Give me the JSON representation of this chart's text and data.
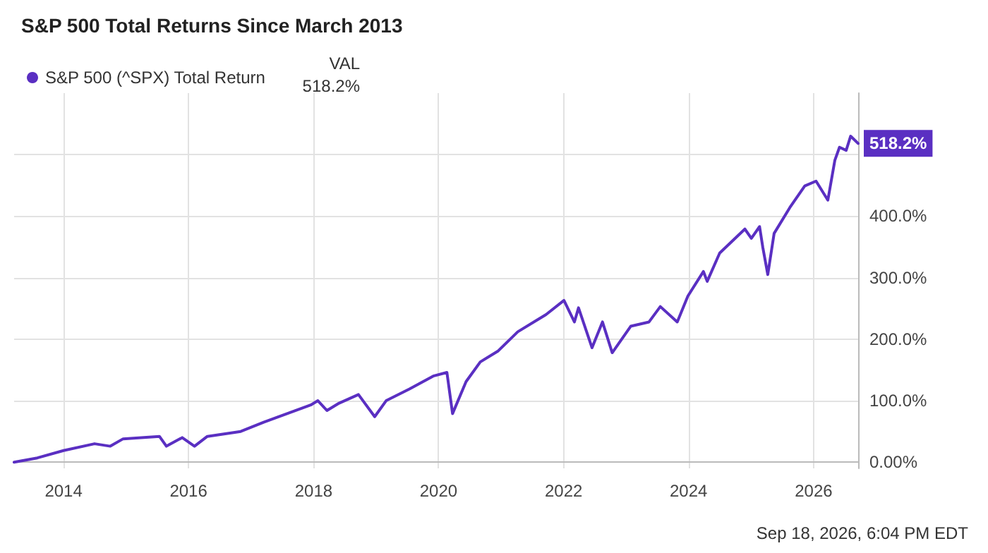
{
  "chart_data": {
    "type": "line",
    "title": "S&P 500 Total Returns Since March 2013",
    "series": [
      {
        "name": "S&P 500 (^SPX) Total Return",
        "color": "#5a2fc2",
        "x": [
          "2013-03-18",
          "2013-08-01",
          "2014-01-01",
          "2014-07-01",
          "2014-10-01",
          "2014-12-15",
          "2015-07-15",
          "2015-08-25",
          "2015-11-25",
          "2016-02-05",
          "2016-04-20",
          "2016-11-01",
          "2017-03-15",
          "2017-12-15",
          "2018-01-26",
          "2018-03-20",
          "2018-05-30",
          "2018-09-20",
          "2018-12-24",
          "2019-03-01",
          "2019-07-15",
          "2019-12-01",
          "2020-02-19",
          "2020-03-23",
          "2020-06-10",
          "2020-09-01",
          "2020-12-15",
          "2021-04-08",
          "2021-09-20",
          "2022-01-03",
          "2022-03-05",
          "2022-03-29",
          "2022-06-16",
          "2022-08-16",
          "2022-10-12",
          "2023-01-28",
          "2023-05-15",
          "2023-07-20",
          "2023-10-27",
          "2023-12-28",
          "2024-03-28",
          "2024-04-19",
          "2024-07-01",
          "2024-11-25",
          "2025-01-02",
          "2025-02-19",
          "2025-03-10",
          "2025-04-08",
          "2025-05-15",
          "2025-08-15",
          "2025-11-10",
          "2026-01-15",
          "2026-03-25",
          "2026-05-05",
          "2026-06-01",
          "2026-07-10",
          "2026-08-05",
          "2026-09-18"
        ],
        "values": [
          0,
          7,
          19,
          30,
          26,
          38,
          42,
          26,
          40,
          26,
          42,
          50,
          65,
          93,
          100,
          84,
          96,
          110,
          74,
          100,
          119,
          140,
          146,
          79,
          131,
          163,
          181,
          212,
          240,
          263,
          228,
          251,
          186,
          228,
          178,
          221,
          228,
          253,
          228,
          270,
          310,
          294,
          340,
          379,
          364,
          383,
          349,
          305,
          372,
          414,
          449,
          457,
          426,
          491,
          512,
          507,
          530,
          518.2
        ],
        "value_labels": [
          null,
          null,
          null,
          null,
          null,
          null,
          null,
          null,
          null,
          null,
          null,
          null,
          null,
          null,
          null,
          null,
          null,
          null,
          null,
          null,
          null,
          null,
          null,
          null,
          null,
          null,
          null,
          null,
          null,
          null,
          null,
          null,
          null,
          null,
          null,
          null,
          null,
          null,
          null,
          null,
          null,
          null,
          null,
          null,
          null,
          null,
          null,
          null,
          null,
          null,
          null,
          null,
          null,
          null,
          null,
          null,
          null,
          "518.2%"
        ]
      }
    ],
    "xlim": [
      "2013-03-18",
      "2026-09-18"
    ],
    "xticks": [
      {
        "value": "2014-01-01",
        "label": "2014"
      },
      {
        "value": "2016-01-01",
        "label": "2016"
      },
      {
        "value": "2018-01-01",
        "label": "2018"
      },
      {
        "value": "2020-01-01",
        "label": "2020"
      },
      {
        "value": "2022-01-01",
        "label": "2022"
      },
      {
        "value": "2024-01-01",
        "label": "2024"
      },
      {
        "value": "2026-01-01",
        "label": "2026"
      }
    ],
    "ylim": [
      -10,
      600
    ],
    "yticks": [
      {
        "value": 0,
        "label": "0.00%"
      },
      {
        "value": 100,
        "label": "100.0%"
      },
      {
        "value": 200,
        "label": "200.0%"
      },
      {
        "value": 300,
        "label": "300.0%"
      },
      {
        "value": 400,
        "label": "400.0%"
      },
      {
        "value": 500,
        "label": null
      }
    ],
    "grid": true,
    "legend": "top left",
    "marker": "none",
    "line_style": "solid",
    "annotations": [
      "VAL",
      "518.2%",
      "Sep 18, 2026, 6:04 PM EDT"
    ]
  }
}
